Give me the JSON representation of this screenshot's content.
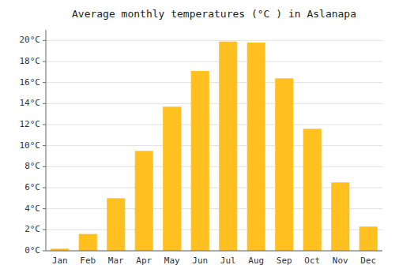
{
  "chart_data": {
    "type": "bar",
    "title": "Average monthly temperatures (°C ) in Aslanapa",
    "categories": [
      "Jan",
      "Feb",
      "Mar",
      "Apr",
      "May",
      "Jun",
      "Jul",
      "Aug",
      "Sep",
      "Oct",
      "Nov",
      "Dec"
    ],
    "values": [
      0.2,
      1.6,
      5.0,
      9.5,
      13.7,
      17.1,
      19.9,
      19.8,
      16.4,
      11.6,
      6.5,
      2.3
    ],
    "color": "#FFC020",
    "ylim": [
      0,
      21
    ],
    "yticks": [
      {
        "value": 0,
        "label": "0°C"
      },
      {
        "value": 2,
        "label": "2°C"
      },
      {
        "value": 4,
        "label": "4°C"
      },
      {
        "value": 6,
        "label": "6°C"
      },
      {
        "value": 8,
        "label": "8°C"
      },
      {
        "value": 10,
        "label": "10°C"
      },
      {
        "value": 12,
        "label": "12°C"
      },
      {
        "value": 14,
        "label": "14°C"
      },
      {
        "value": 16,
        "label": "16°C"
      },
      {
        "value": 18,
        "label": "18°C"
      },
      {
        "value": 20,
        "label": "20°C"
      }
    ],
    "grid": true
  }
}
